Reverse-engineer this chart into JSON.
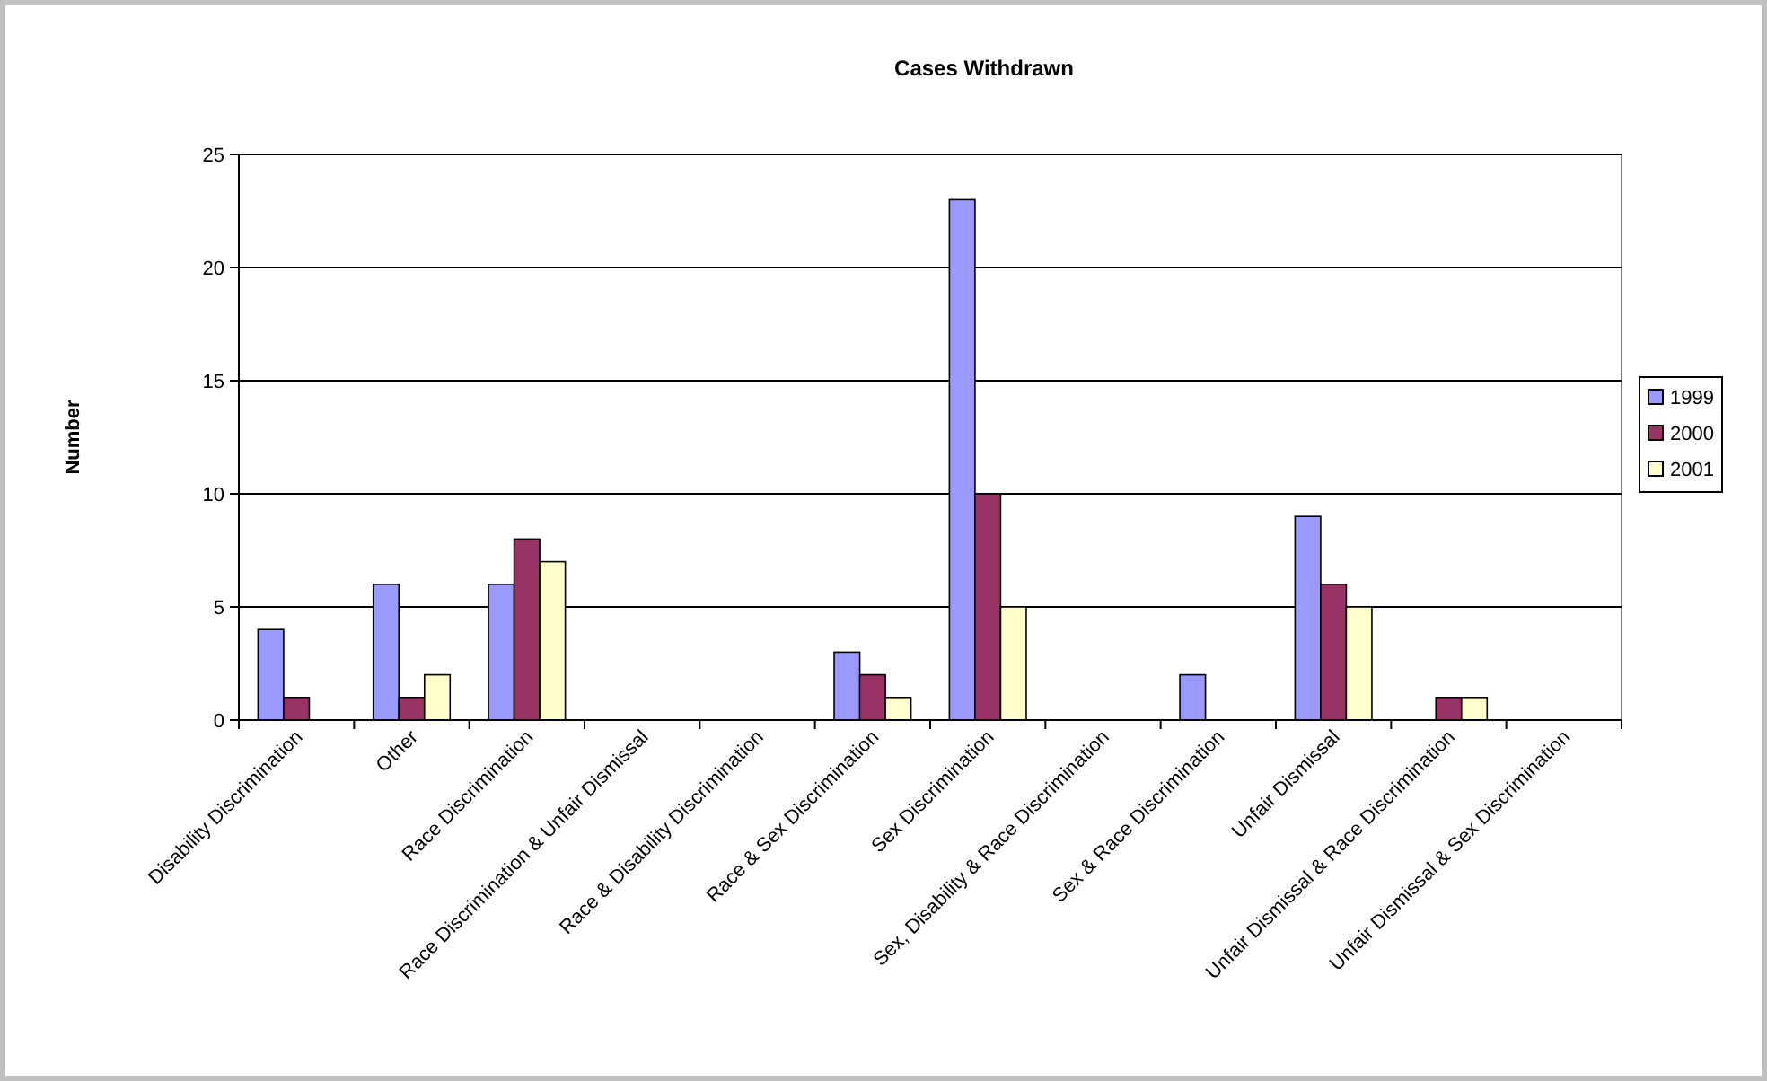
{
  "chart_data": {
    "type": "bar",
    "title": "Cases Withdrawn",
    "ylabel": "Number",
    "categories": [
      "Disability Discrimination",
      "Other",
      "Race Discrimination",
      "Race Discrimination & Unfair Dismissal",
      "Race & Disability Discrimination",
      "Race & Sex Discrimination",
      "Sex Discrimination",
      "Sex, Disability & Race Discrimination",
      "Sex & Race Discrimination",
      "Unfair Dismissal",
      "Unfair Dismissal & Race Discrimination",
      "Unfair Dismissal & Sex Discrimination"
    ],
    "series": [
      {
        "name": "1999",
        "color": "#9999ff",
        "values": [
          4,
          6,
          6,
          0,
          0,
          3,
          23,
          0,
          2,
          9,
          0,
          0
        ]
      },
      {
        "name": "2000",
        "color": "#993366",
        "values": [
          1,
          1,
          8,
          0,
          0,
          2,
          10,
          0,
          0,
          6,
          1,
          0
        ]
      },
      {
        "name": "2001",
        "color": "#ffffcc",
        "values": [
          0,
          2,
          7,
          0,
          0,
          1,
          5,
          0,
          0,
          5,
          1,
          0
        ]
      }
    ],
    "ylim": [
      0,
      25
    ],
    "yticks": [
      0,
      5,
      10,
      15,
      20,
      25
    ],
    "grid": "y",
    "legend": "right"
  }
}
